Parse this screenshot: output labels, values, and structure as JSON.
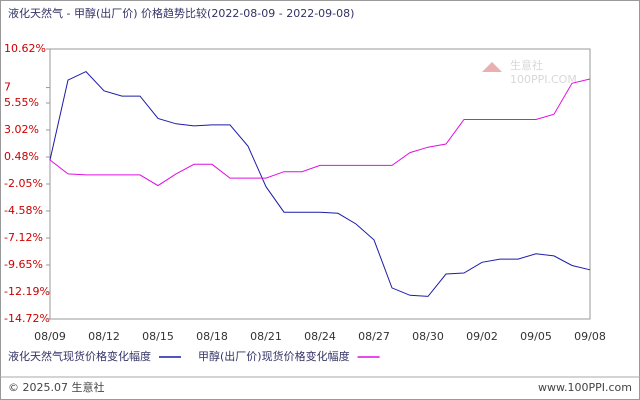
{
  "chart_data": {
    "type": "line",
    "title": "液化天然气 - 甲醇(出厂价) 价格趋势比较(2022-08-09 - 2022-09-08)",
    "categories": [
      "08/09",
      null,
      null,
      "08/12",
      null,
      null,
      "08/15",
      null,
      null,
      "08/18",
      null,
      null,
      "08/21",
      null,
      null,
      "08/24",
      null,
      null,
      "08/27",
      null,
      null,
      "08/30",
      null,
      null,
      "09/02",
      null,
      null,
      "09/05",
      null,
      null,
      "09/08"
    ],
    "series": [
      {
        "name": "液化天然气现货价格变化幅度",
        "color": "#1c1ca8",
        "values": [
          0.2,
          7.7,
          8.5,
          6.7,
          6.2,
          6.2,
          4.1,
          3.6,
          3.4,
          3.5,
          3.5,
          1.5,
          -2.3,
          -4.7,
          -4.7,
          -4.7,
          -4.8,
          -5.8,
          -7.3,
          -11.8,
          -12.5,
          -12.6,
          -10.5,
          -10.4,
          -9.4,
          -9.1,
          -9.1,
          -8.6,
          -8.8,
          -9.7,
          -10.1
        ]
      },
      {
        "name": "甲醇(出厂价)现货价格变化幅度",
        "color": "#e010e0",
        "values": [
          0.2,
          -1.1,
          -1.2,
          -1.2,
          -1.2,
          -1.2,
          -2.2,
          -1.1,
          -0.2,
          -0.2,
          -1.5,
          -1.5,
          -1.5,
          -0.9,
          -0.9,
          -0.3,
          -0.3,
          -0.3,
          -0.3,
          -0.3,
          0.9,
          1.4,
          1.7,
          4.0,
          4.0,
          4.0,
          4.0,
          4.0,
          4.5,
          7.4,
          7.8
        ]
      }
    ],
    "ylim": [
      -14.72,
      10.62
    ],
    "yticks": [
      {
        "value": 10.62,
        "label": "10.62%"
      },
      7,
      {
        "value": 5.55,
        "label": "5.55%"
      },
      {
        "value": 3.02,
        "label": "3.02%"
      },
      {
        "value": 0.48,
        "label": "0.48%"
      },
      {
        "value": -2.05,
        "label": "-2.05%"
      },
      {
        "value": -4.58,
        "label": "-4.58%"
      },
      {
        "value": -7.12,
        "label": "-7.12%"
      },
      {
        "value": -9.65,
        "label": "-9.65%"
      },
      {
        "value": -12.19,
        "label": "-12.19%"
      },
      {
        "value": -14.72,
        "label": "-14.72%"
      }
    ],
    "grid": false,
    "footer": "© 2025.07 生意社",
    "site": "www.100PPI.com",
    "watermark": "生意社",
    "watermark_sub": "100PPI.COM"
  }
}
